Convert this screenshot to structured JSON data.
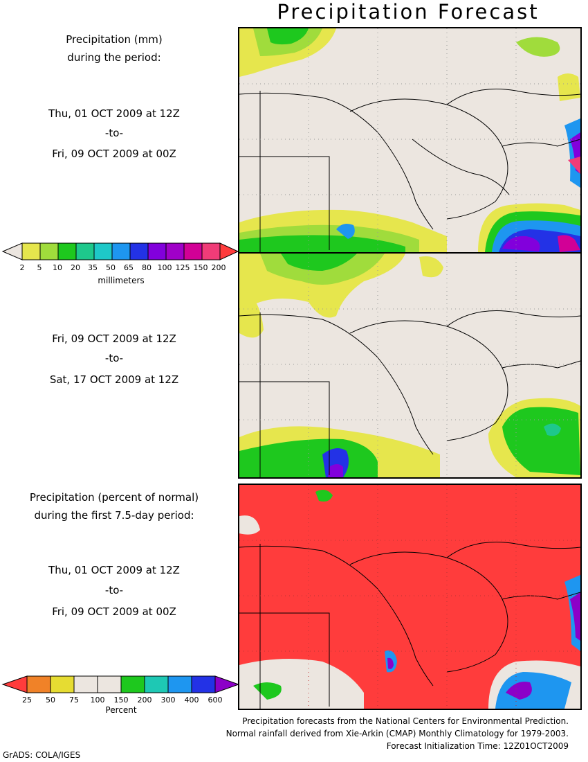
{
  "title": "Precipitation Forecast",
  "panel1": {
    "heading_1": "Precipitation (mm)",
    "heading_2": "during the period:",
    "start": "Thu, 01 OCT 2009 at 12Z",
    "sep": "-to-",
    "end": "Fri, 09 OCT 2009 at 00Z"
  },
  "panel2": {
    "start": "Fri, 09 OCT 2009 at 12Z",
    "sep": "-to-",
    "end": "Sat, 17 OCT 2009 at 12Z"
  },
  "panel3": {
    "heading_1": "Precipitation (percent of normal)",
    "heading_2": "during the first 7.5-day period:",
    "start": "Thu, 01 OCT 2009 at 12Z",
    "sep": "-to-",
    "end": "Fri, 09 OCT 2009 at 00Z"
  },
  "mm_scale": {
    "unit": "millimeters",
    "ticks": [
      "2",
      "5",
      "10",
      "20",
      "35",
      "50",
      "65",
      "80",
      "100",
      "125",
      "150",
      "200"
    ],
    "colors": [
      "#e6e64d",
      "#a0dc3c",
      "#1ec81e",
      "#1ec88c",
      "#1ec8c8",
      "#1e96f0",
      "#2332e6",
      "#8200dc",
      "#a000c8",
      "#d20096",
      "#f03c78",
      "#fa5a5a"
    ],
    "low_color": "#ece6e0",
    "high_color": "#ff3c3c"
  },
  "pct_scale": {
    "unit": "Percent",
    "ticks": [
      "25",
      "50",
      "75",
      "100",
      "150",
      "200",
      "300",
      "400",
      "600"
    ],
    "colors": [
      "#ff3c3c",
      "#f08228",
      "#e6dc32",
      "#ece6e0",
      "#ece6e0",
      "#1ec81e",
      "#1ec8b4",
      "#1e96f0",
      "#2332e6",
      "#8c00c8"
    ]
  },
  "footer": {
    "line1": "Precipitation forecasts from the National Centers for Environmental Prediction.",
    "line2": "Normal rainfall derived from Xie-Arkin (CMAP) Monthly Climatology for 1979-2003.",
    "line3": "Forecast Initialization Time: 12Z01OCT2009"
  },
  "credit": "GrADS: COLA/IGES",
  "colors": {
    "land_background": "#ece6e0",
    "below_normal": "#ff3c3c"
  }
}
